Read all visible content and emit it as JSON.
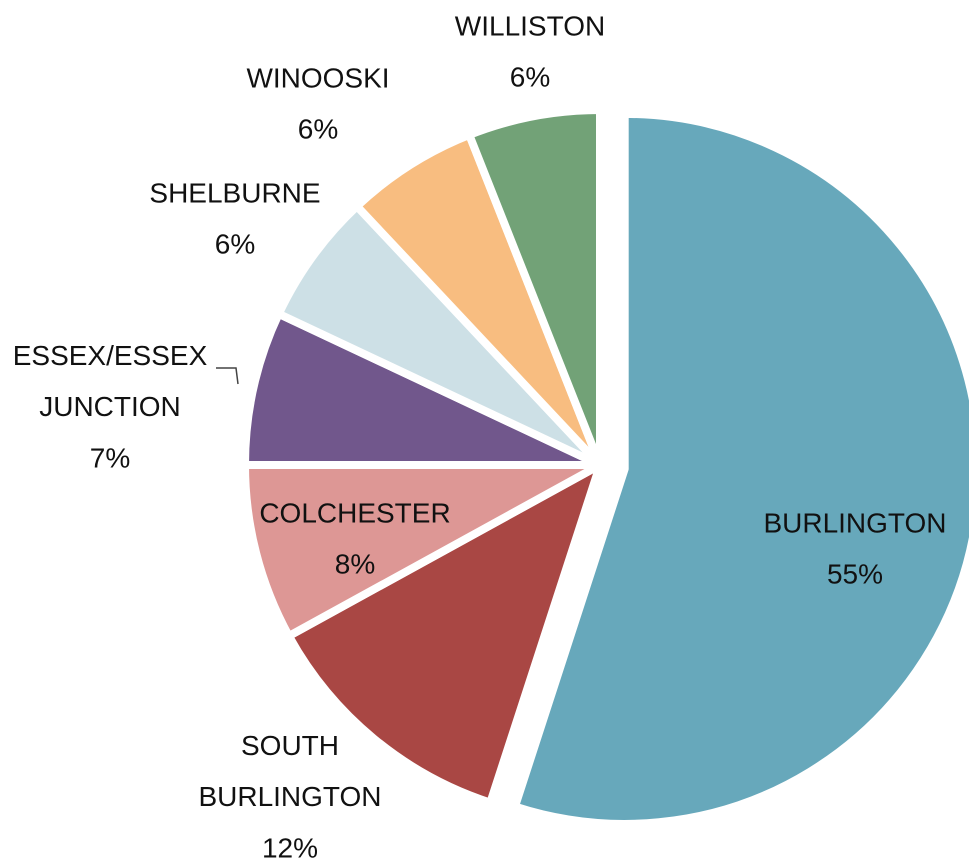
{
  "chart_data": {
    "type": "pie",
    "categories": [
      "BURLINGTON",
      "SOUTH BURLINGTON",
      "COLCHESTER",
      "ESSEX/ESSEX JUNCTION",
      "SHELBURNE",
      "WINOOSKI",
      "WILLISTON"
    ],
    "values": [
      55,
      12,
      8,
      7,
      6,
      6,
      6
    ],
    "value_labels": [
      "55%",
      "12%",
      "8%",
      "7%",
      "6%",
      "6%",
      "6%"
    ],
    "colors": [
      "#67a8bb",
      "#a94744",
      "#dd9795",
      "#71578c",
      "#cde0e6",
      "#f8bd80",
      "#72a277"
    ]
  }
}
